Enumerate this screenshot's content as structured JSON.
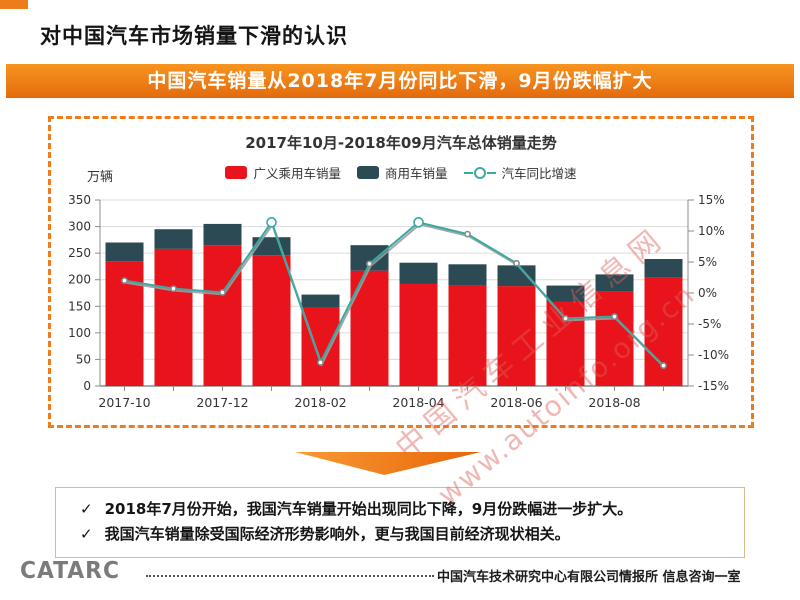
{
  "page": {
    "title": "对中国汽车市场销量下滑的认识",
    "banner": "中国汽车销量从2018年7月份同比下滑，9月份跌幅扩大"
  },
  "colors": {
    "accent_orange": "#ee7c1d",
    "passenger_red": "#e8131b",
    "commercial_dark": "#2c4a54",
    "growth_teal": "#3aa9a3",
    "watermark_pink": "rgba(222,95,88,0.45)"
  },
  "chart": {
    "title": "2017年10月-2018年09月汽车总体销量走势",
    "unit_label": "万辆",
    "legend": [
      {
        "label": "广义乘用车销量",
        "color": "#e8131b",
        "type": "square"
      },
      {
        "label": "商用车销量",
        "color": "#2c4a54",
        "type": "square"
      },
      {
        "label": "汽车同比增速",
        "color": "#3aa9a3",
        "type": "line-circle"
      }
    ]
  },
  "chart_data": {
    "type": "bar",
    "subtype": "stacked-bars-with-line",
    "title": "2017年10月-2018年09月汽车总体销量走势",
    "categories": [
      "2017-10",
      "2017-11",
      "2017-12",
      "2018-01",
      "2018-02",
      "2018-03",
      "2018-04",
      "2018-05",
      "2018-06",
      "2018-07",
      "2018-08",
      "2018-09"
    ],
    "x_tick_labels_shown": [
      "2017-10",
      "2017-12",
      "2018-02",
      "2018-04",
      "2018-06",
      "2018-08"
    ],
    "series": [
      {
        "name": "广义乘用车销量",
        "type": "bar",
        "stack": true,
        "color": "#e8131b",
        "values": [
          235,
          258,
          265,
          246,
          147,
          217,
          192,
          190,
          188,
          159,
          178,
          205
        ]
      },
      {
        "name": "商用车销量",
        "type": "bar",
        "stack": true,
        "color": "#2c4a54",
        "values": [
          35,
          37,
          40,
          34,
          25,
          48,
          40,
          39,
          39,
          30,
          32,
          34
        ]
      },
      {
        "name": "汽车同比增速",
        "type": "line",
        "axis": "right",
        "color": "#3aa9a3",
        "values_pct": [
          2.0,
          0.7,
          0.1,
          11.4,
          -11.2,
          4.7,
          11.4,
          9.5,
          4.8,
          -4.1,
          -3.8,
          -11.7
        ]
      }
    ],
    "stacked_totals": [
      270,
      295,
      305,
      280,
      172,
      265,
      232,
      229,
      227,
      189,
      210,
      239
    ],
    "left_axis": {
      "label": "万辆",
      "min": 0,
      "max": 350,
      "step": 50
    },
    "right_axis": {
      "min": -15,
      "max": 15,
      "step": 5,
      "suffix": "%"
    },
    "grid": true,
    "legend_position": "top",
    "marker_emphasis": [
      "2018-01",
      "2018-04"
    ]
  },
  "watermark": {
    "line1": "中国汽车工业信息网",
    "line2": "www.autoinfo.org.cn"
  },
  "notes": {
    "items": [
      {
        "bullet": "✓",
        "text": "2018年7月份开始，我国汽车销量开始出现同比下降，9月份跌幅进一步扩大。"
      },
      {
        "bullet": "✓",
        "text": "我国汽车销量除受国际经济形势影响外，更与我国目前经济现状相关。"
      }
    ]
  },
  "footer": {
    "logo_text": "CATARC",
    "org_text": "中国汽车技术研究中心有限公司情报所  信息咨询一室"
  }
}
